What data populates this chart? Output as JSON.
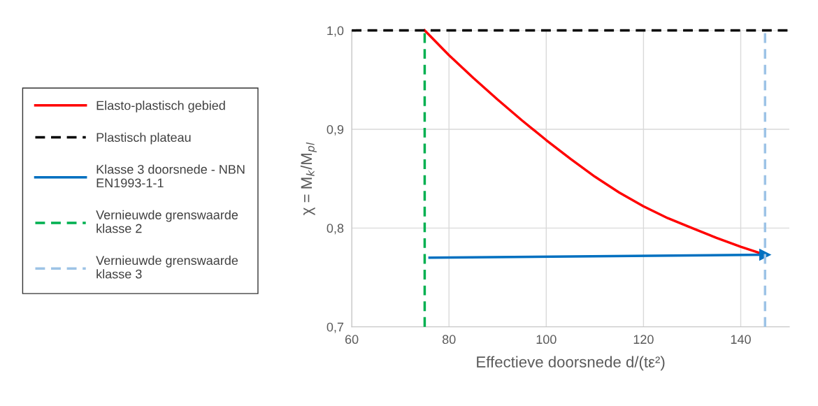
{
  "chart_data": {
    "type": "line",
    "xlabel": "Effectieve doorsnede d/(tε²)",
    "ylabel": "χ = M$_{k}$/M$_{pl}$",
    "xlim": [
      60,
      150
    ],
    "xticks": [
      60,
      80,
      100,
      120,
      140
    ],
    "ylim": [
      0.7,
      1.0
    ],
    "yticks": [
      {
        "value": 0.7,
        "label": "0,7"
      },
      {
        "value": 0.8,
        "label": "0,8"
      },
      {
        "value": 0.9,
        "label": "0,9"
      },
      {
        "value": 1.0,
        "label": "1,0"
      }
    ],
    "grid": true,
    "legend": "left",
    "series": [
      {
        "name": "Elasto-plastisch gebied",
        "color": "#ff0000",
        "line_style": "solid",
        "x": [
          75,
          80,
          85,
          90,
          95,
          100,
          105,
          110,
          115,
          120,
          125,
          130,
          135,
          140,
          145
        ],
        "values": [
          1.0,
          0.975,
          0.952,
          0.93,
          0.909,
          0.889,
          0.87,
          0.852,
          0.836,
          0.822,
          0.81,
          0.8,
          0.79,
          0.781,
          0.773
        ]
      },
      {
        "name": "Plastisch plateau",
        "color": "#000000",
        "line_style": "dashed",
        "x": [
          60,
          150
        ],
        "values": [
          1.0,
          1.0
        ]
      },
      {
        "name": "Klasse 3 doorsnede - NBN EN1993-1-1",
        "color": "#0070c0",
        "line_style": "solid",
        "marker": "triangle",
        "x": [
          76,
          145
        ],
        "values": [
          0.77,
          0.773
        ]
      },
      {
        "name": "Vernieuwde grenswaarde klasse 2",
        "color": "#00b050",
        "line_style": "dashed",
        "x": [
          75,
          75
        ],
        "values": [
          0.7,
          1.0
        ]
      },
      {
        "name": "Vernieuwde grenswaarde klasse 3",
        "color": "#9dc3e6",
        "line_style": "dashed",
        "x": [
          145,
          145
        ],
        "values": [
          0.7,
          1.0
        ]
      }
    ]
  }
}
